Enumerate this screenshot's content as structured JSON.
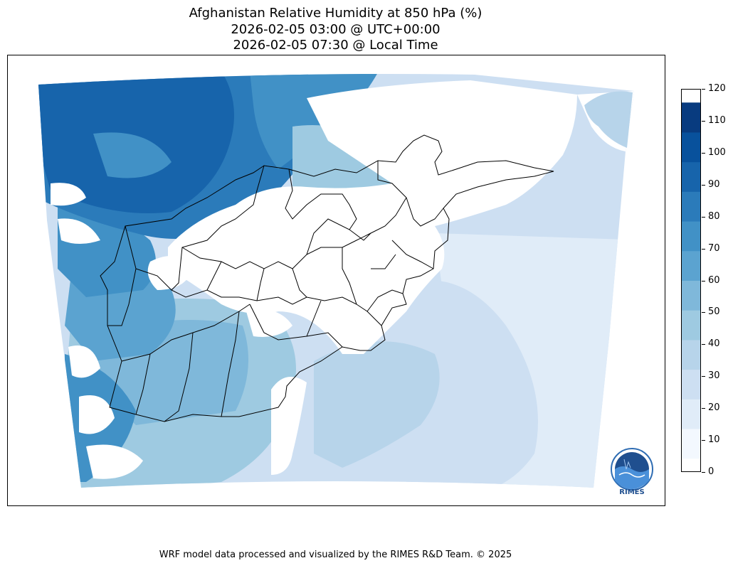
{
  "title": {
    "line1": "Afghanistan Relative Humidity at 850 hPa (%)",
    "line2": "2026-02-05 03:00 @ UTC+00:00",
    "line3": "2026-02-05 07:30 @ Local Time"
  },
  "colorbar": {
    "ticks": [
      "120",
      "110",
      "100",
      "90",
      "80",
      "70",
      "60",
      "50",
      "40",
      "30",
      "20",
      "10",
      "0"
    ],
    "colors": [
      "#f3f8fe",
      "#e0ecf8",
      "#cddff2",
      "#b7d4ea",
      "#9ecae1",
      "#7fb8da",
      "#5ba3d0",
      "#4191c6",
      "#2b7bba",
      "#1764ab",
      "#08519c",
      "#083b7f"
    ]
  },
  "logo": {
    "text": "RIMES",
    "icon": "rimes-logo-icon"
  },
  "footer": "WRF model data processed and visualized by the RIMES R&D Team. © 2025"
}
